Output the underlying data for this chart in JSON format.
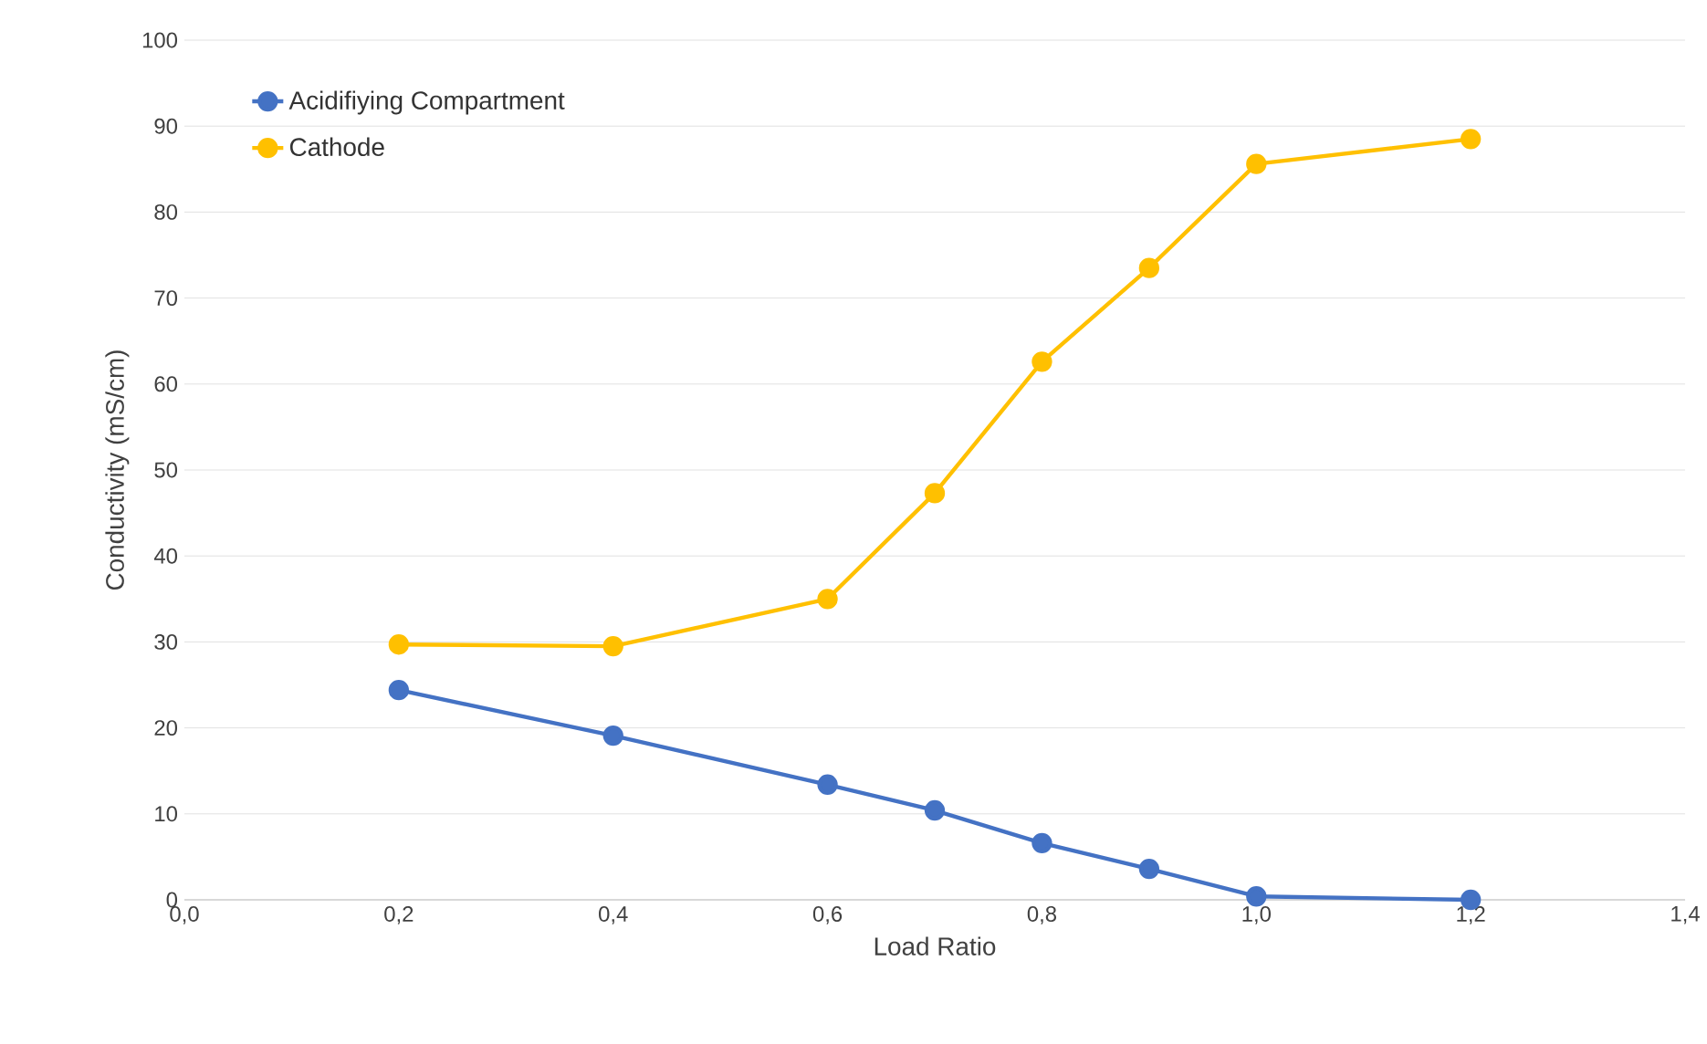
{
  "chart_data": {
    "type": "line",
    "xlabel": "Load Ratio",
    "ylabel": "Conductivity (mS/cm)",
    "x": [
      0.2,
      0.4,
      0.6,
      0.7,
      0.8,
      0.9,
      1.0,
      1.2
    ],
    "series": [
      {
        "name": "Acidifiying Compartment",
        "color": "#4472c4",
        "values": [
          24.4,
          19.1,
          13.4,
          10.4,
          6.6,
          3.6,
          0.4,
          0
        ]
      },
      {
        "name": "Cathode",
        "color": "#ffc000",
        "values": [
          29.7,
          29.5,
          35.0,
          47.3,
          62.6,
          73.5,
          85.6,
          88.5
        ]
      }
    ],
    "xlim": [
      0,
      1.4
    ],
    "xticks": [
      {
        "value": 0,
        "label": "0,0"
      },
      {
        "value": 0.2,
        "label": "0,2"
      },
      {
        "value": 0.4,
        "label": "0,4"
      },
      {
        "value": 0.6,
        "label": "0,6"
      },
      {
        "value": 0.8,
        "label": "0,8"
      },
      {
        "value": 1.0,
        "label": "1,0"
      },
      {
        "value": 1.2,
        "label": "1,2"
      },
      {
        "value": 1.4,
        "label": "1,4"
      }
    ],
    "ylim": [
      0,
      100
    ],
    "yticks": [
      0,
      10,
      20,
      30,
      40,
      50,
      60,
      70,
      80,
      90,
      100
    ],
    "grid": "y",
    "legend": "top left",
    "marker": "circle",
    "line_style": "solid"
  }
}
